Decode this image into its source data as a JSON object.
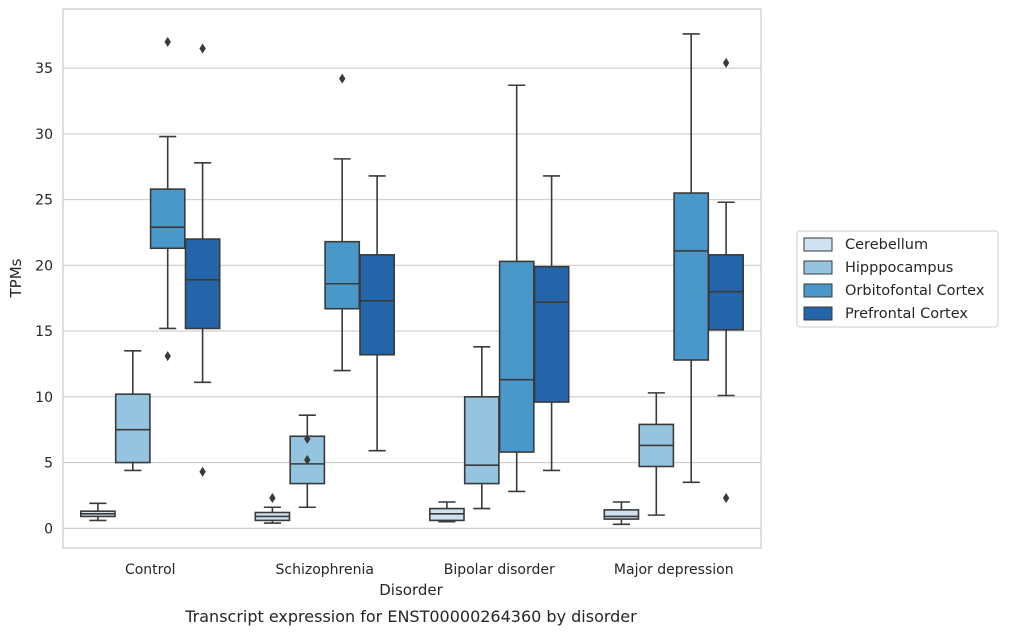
{
  "chart_data": {
    "type": "box",
    "title": "",
    "caption": "Transcript expression for ENST00000264360 by disorder",
    "xlabel": "Disorder",
    "ylabel": "TPMs",
    "ylim": [
      -1.5,
      39.5
    ],
    "yticks": [
      0,
      5,
      10,
      15,
      20,
      25,
      30,
      35
    ],
    "grid": "horizontal",
    "legend_position": "right",
    "categories": [
      "Control",
      "Schizophrenia",
      "Bipolar disorder",
      "Major depression"
    ],
    "series": [
      {
        "name": "Cerebellum",
        "color": "#d0e1f2",
        "boxes": [
          {
            "whislo": 0.6,
            "q1": 0.9,
            "med": 1.1,
            "q3": 1.3,
            "whishi": 1.9,
            "fliers": []
          },
          {
            "whislo": 0.4,
            "q1": 0.6,
            "med": 0.9,
            "q3": 1.2,
            "whishi": 1.6,
            "fliers": [
              2.3
            ]
          },
          {
            "whislo": 0.5,
            "q1": 0.6,
            "med": 1.1,
            "q3": 1.5,
            "whishi": 2.0,
            "fliers": []
          },
          {
            "whislo": 0.3,
            "q1": 0.7,
            "med": 0.9,
            "q3": 1.4,
            "whishi": 2.0,
            "fliers": []
          }
        ]
      },
      {
        "name": "Hipppocampus",
        "color": "#94c4df",
        "boxes": [
          {
            "whislo": 4.4,
            "q1": 5.0,
            "med": 7.5,
            "q3": 10.2,
            "whishi": 13.5,
            "fliers": []
          },
          {
            "whislo": 1.6,
            "q1": 3.4,
            "med": 4.9,
            "q3": 7.0,
            "whishi": 8.6,
            "fliers": [
              5.2,
              6.8
            ]
          },
          {
            "whislo": 1.5,
            "q1": 3.4,
            "med": 4.8,
            "q3": 10.0,
            "whishi": 13.8,
            "fliers": []
          },
          {
            "whislo": 1.0,
            "q1": 4.7,
            "med": 6.3,
            "q3": 7.9,
            "whishi": 10.3,
            "fliers": []
          }
        ]
      },
      {
        "name": "Orbitofontal Cortex",
        "color": "#4a98c9",
        "boxes": [
          {
            "whislo": 15.2,
            "q1": 21.3,
            "med": 22.9,
            "q3": 25.8,
            "whishi": 29.8,
            "fliers": [
              13.1,
              37.0
            ]
          },
          {
            "whislo": 12.0,
            "q1": 16.7,
            "med": 18.6,
            "q3": 21.8,
            "whishi": 28.1,
            "fliers": [
              34.2
            ]
          },
          {
            "whislo": 2.8,
            "q1": 5.8,
            "med": 11.3,
            "q3": 20.3,
            "whishi": 33.7,
            "fliers": []
          },
          {
            "whislo": 3.5,
            "q1": 12.8,
            "med": 21.1,
            "q3": 25.5,
            "whishi": 37.6,
            "fliers": []
          }
        ]
      },
      {
        "name": "Prefrontal Cortex",
        "color": "#2464a9",
        "boxes": [
          {
            "whislo": 11.1,
            "q1": 15.2,
            "med": 18.9,
            "q3": 22.0,
            "whishi": 27.8,
            "fliers": [
              4.3,
              36.5
            ]
          },
          {
            "whislo": 5.9,
            "q1": 13.2,
            "med": 17.3,
            "q3": 20.8,
            "whishi": 26.8,
            "fliers": []
          },
          {
            "whislo": 4.4,
            "q1": 9.6,
            "med": 17.2,
            "q3": 19.9,
            "whishi": 26.8,
            "fliers": []
          },
          {
            "whislo": 10.1,
            "q1": 15.1,
            "med": 18.0,
            "q3": 20.8,
            "whishi": 24.8,
            "fliers": [
              2.3,
              35.4
            ]
          }
        ]
      }
    ]
  }
}
